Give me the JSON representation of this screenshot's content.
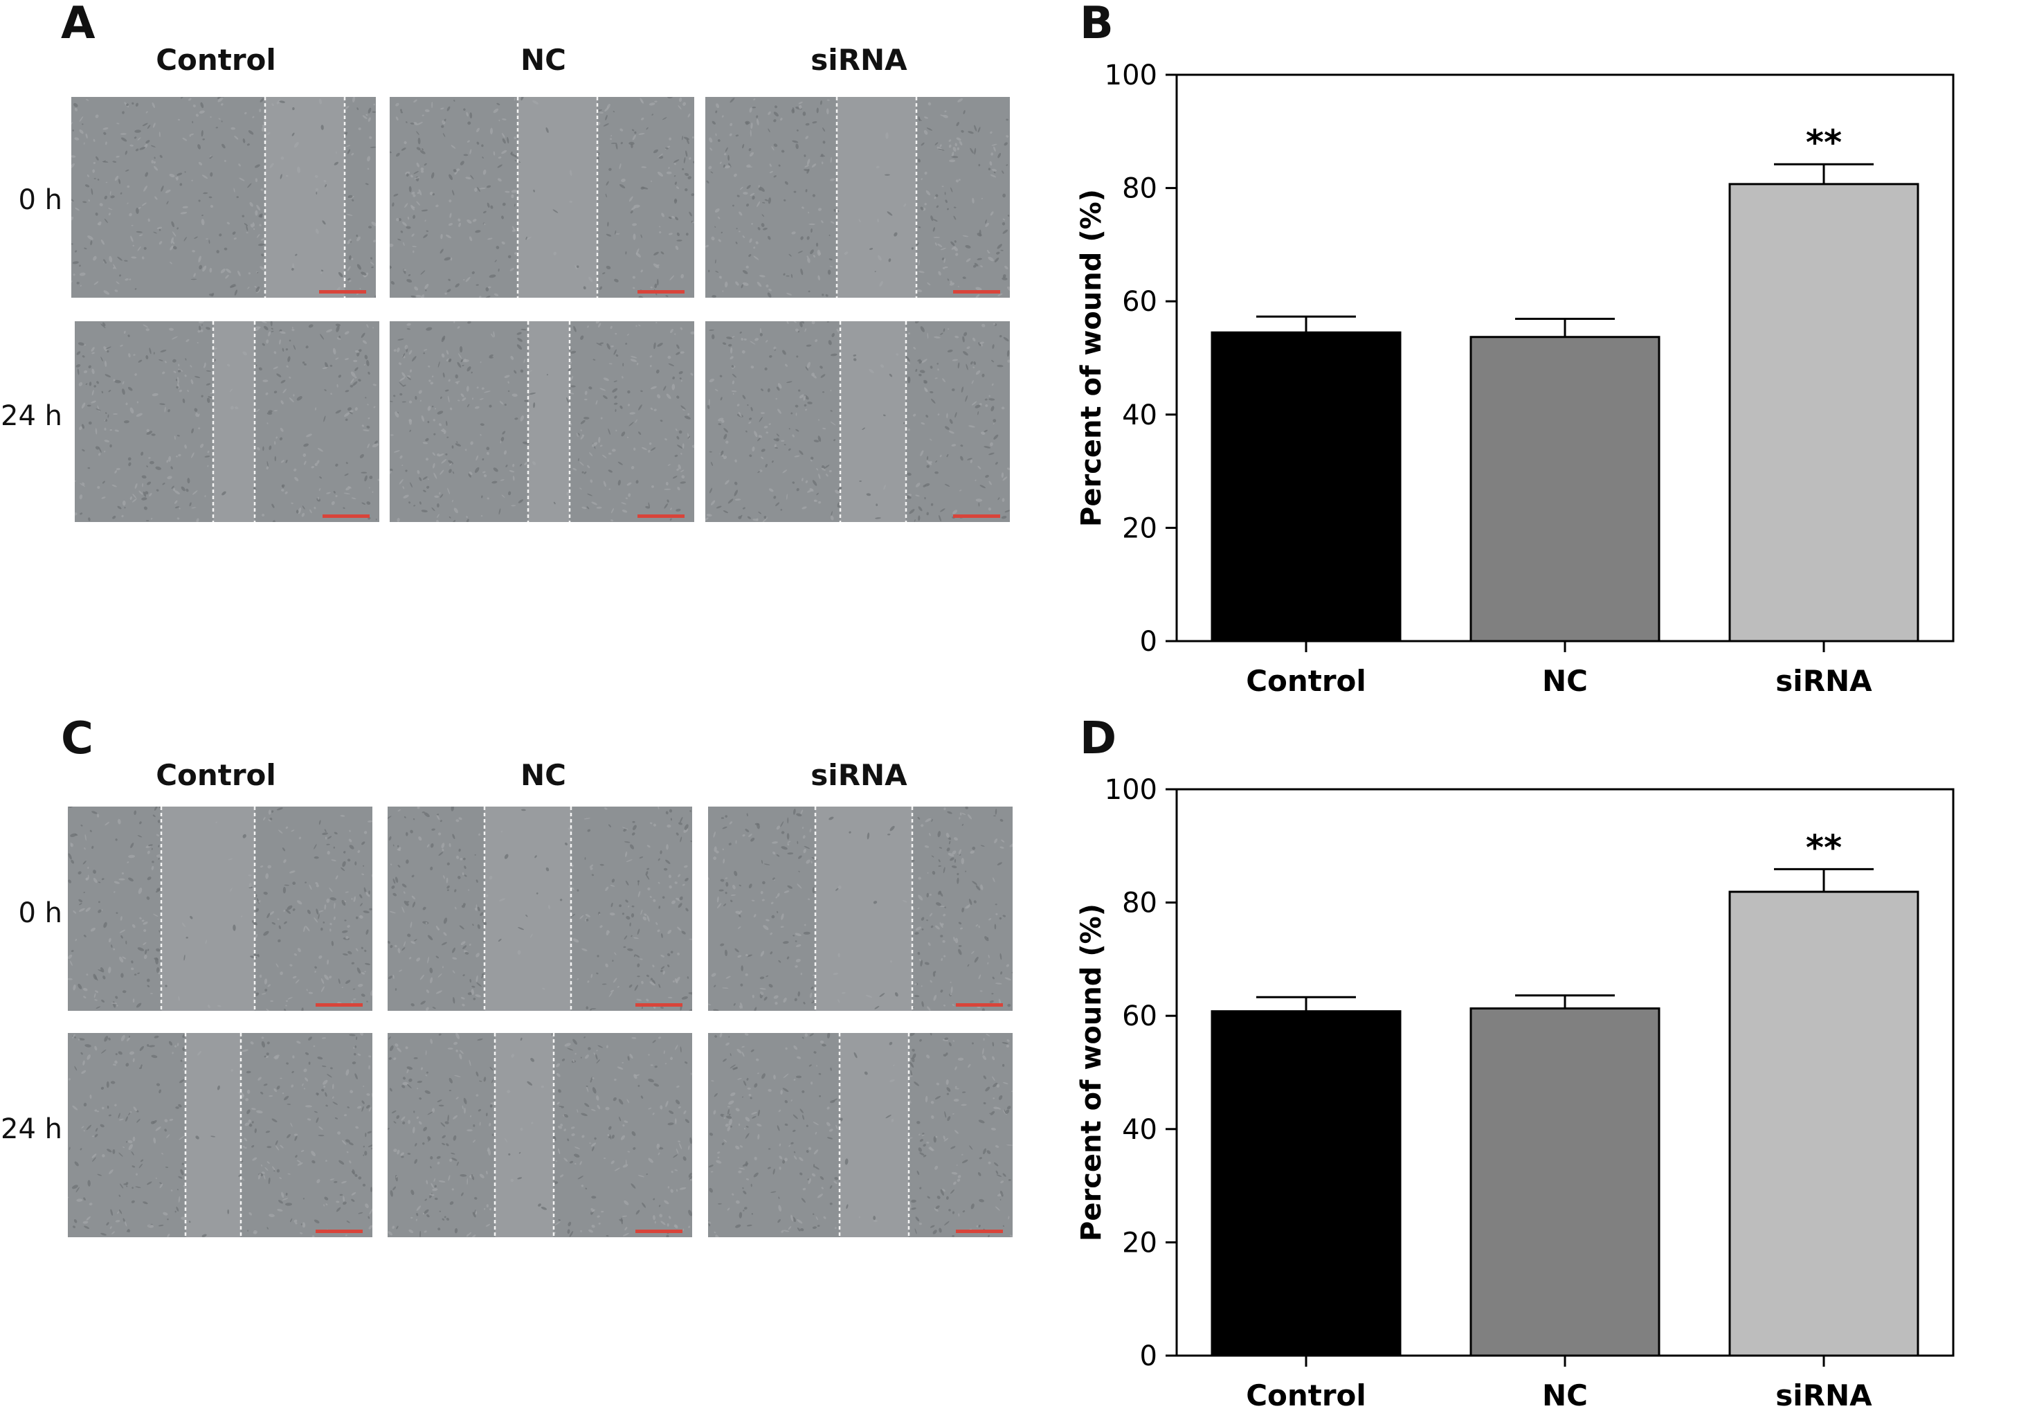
{
  "figure_a": {
    "letter": "A",
    "columns": [
      "Control",
      "NC",
      "siRNA"
    ],
    "rows": [
      "0 h",
      "24 h"
    ]
  },
  "figure_c": {
    "letter": "C",
    "columns": [
      "Control",
      "NC",
      "siRNA"
    ],
    "rows": [
      "0 h",
      "24 h"
    ]
  },
  "chart_data": [
    {
      "panel": "B",
      "type": "bar",
      "categories": [
        "Control",
        "NC",
        "siRNA"
      ],
      "values": [
        54.5,
        53.7,
        80.7
      ],
      "errors": [
        2.8,
        3.2,
        3.5
      ],
      "significance": [
        "",
        "",
        "**"
      ],
      "ylabel": "Percent of wound (%)",
      "ylim": [
        0,
        100
      ],
      "yticks": [
        0,
        20,
        40,
        60,
        80,
        100
      ],
      "colors": [
        "#000000",
        "#808080",
        "#bdbdbd"
      ],
      "grid": false
    },
    {
      "panel": "D",
      "type": "bar",
      "categories": [
        "Control",
        "NC",
        "siRNA"
      ],
      "values": [
        60.8,
        61.3,
        81.9
      ],
      "errors": [
        2.5,
        2.3,
        4.0
      ],
      "significance": [
        "",
        "",
        "**"
      ],
      "ylabel": "Percent of wound (%)",
      "ylim": [
        0,
        100
      ],
      "yticks": [
        0,
        20,
        40,
        60,
        80,
        100
      ],
      "colors": [
        "#000000",
        "#808080",
        "#bdbdbd"
      ],
      "grid": false
    }
  ]
}
